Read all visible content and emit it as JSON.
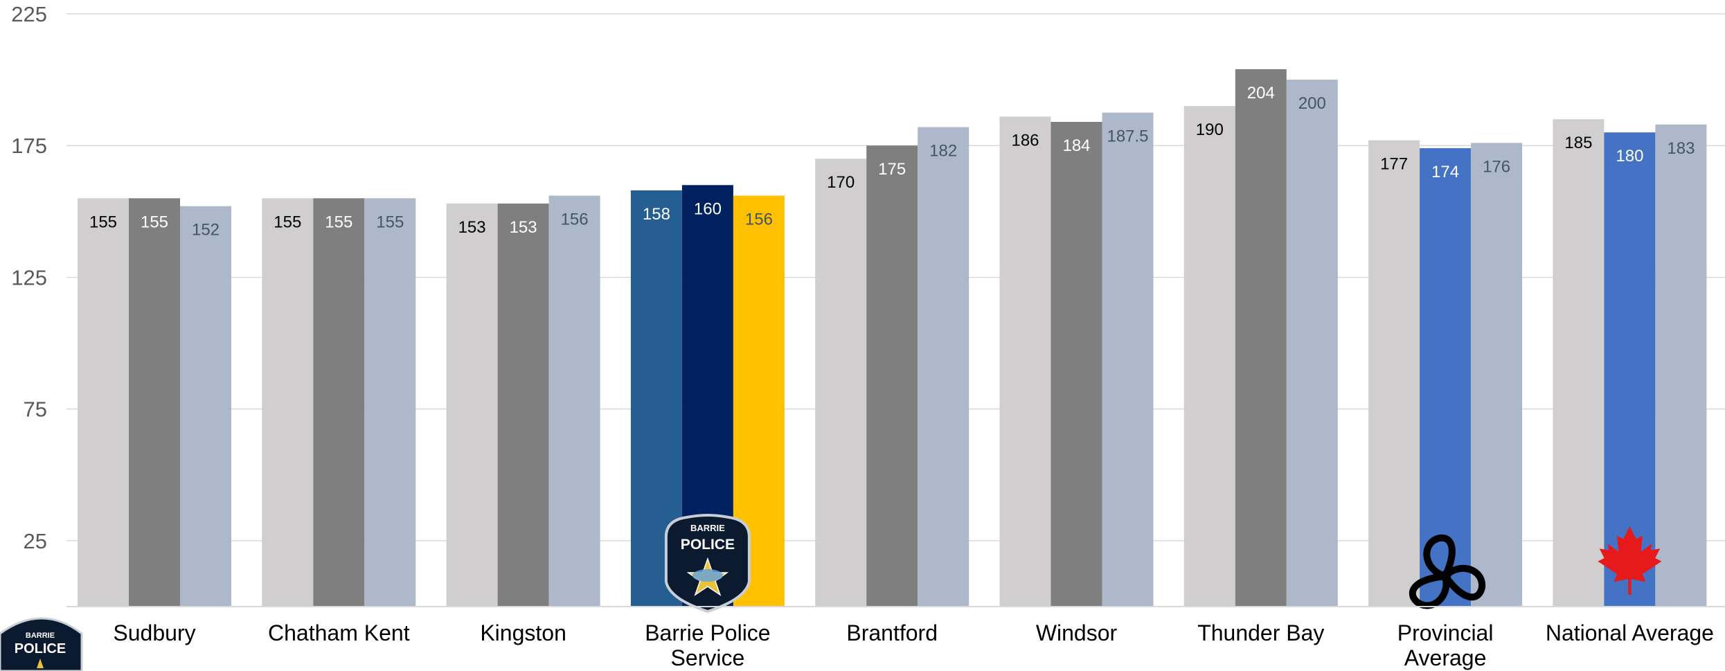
{
  "chart_data": {
    "type": "bar",
    "title": "",
    "xlabel": "",
    "ylabel": "",
    "ylim": [
      0,
      225
    ],
    "yticks": [
      25,
      75,
      125,
      175,
      225
    ],
    "grid": true,
    "legend": "none",
    "categories": [
      "Sudbury",
      "Chatham Kent",
      "Kingston",
      "Barrie Police Service",
      "Brantford",
      "Windsor",
      "Thunder Bay",
      "Provincial Average",
      "National Average"
    ],
    "series": [
      {
        "values": [
          155,
          155,
          153,
          158,
          170,
          186,
          190,
          177,
          185
        ]
      },
      {
        "values": [
          155,
          155,
          153,
          160,
          175,
          184,
          204,
          174,
          180
        ]
      },
      {
        "values": [
          152,
          155,
          156,
          156,
          182,
          187.5,
          200,
          176,
          183
        ]
      }
    ],
    "data_labels": [
      [
        "155",
        "155",
        "153",
        "158",
        "170",
        "186",
        "190",
        "177",
        "185"
      ],
      [
        "155",
        "155",
        "153",
        "160",
        "175",
        "184",
        "204",
        "174",
        "180"
      ],
      [
        "152",
        "155",
        "156",
        "156",
        "182",
        "187.5",
        "200",
        "176",
        "183"
      ]
    ],
    "series_colors": [
      "#d0cece",
      "#7f7f7f",
      "#adb9ca"
    ],
    "highlight_colors": {
      "Barrie Police Service": [
        "#255e91",
        "#002060",
        "#ffc000"
      ],
      "Provincial Average": [
        "#d0cece",
        "#4472c4",
        "#adb9ca"
      ],
      "National Average": [
        "#d0cece",
        "#4472c4",
        "#adb9ca"
      ]
    },
    "label_colors": {
      "on_light": "#000000",
      "on_gray": "#ffffff",
      "on_blue_gray": "#44546a",
      "on_dark": "#ffffff",
      "on_yellow": "#44546a"
    },
    "category_icons": {
      "Barrie Police Service": "barrie-police-badge-icon",
      "Provincial Average": "ontario-trillium-icon",
      "National Average": "canada-maple-leaf-icon"
    }
  },
  "corner_logo": {
    "icon": "barrie-police-badge-icon",
    "line1": "BARRIE",
    "line2": "POLICE"
  },
  "bar_badge": {
    "line1": "BARRIE",
    "line2": "POLICE"
  }
}
